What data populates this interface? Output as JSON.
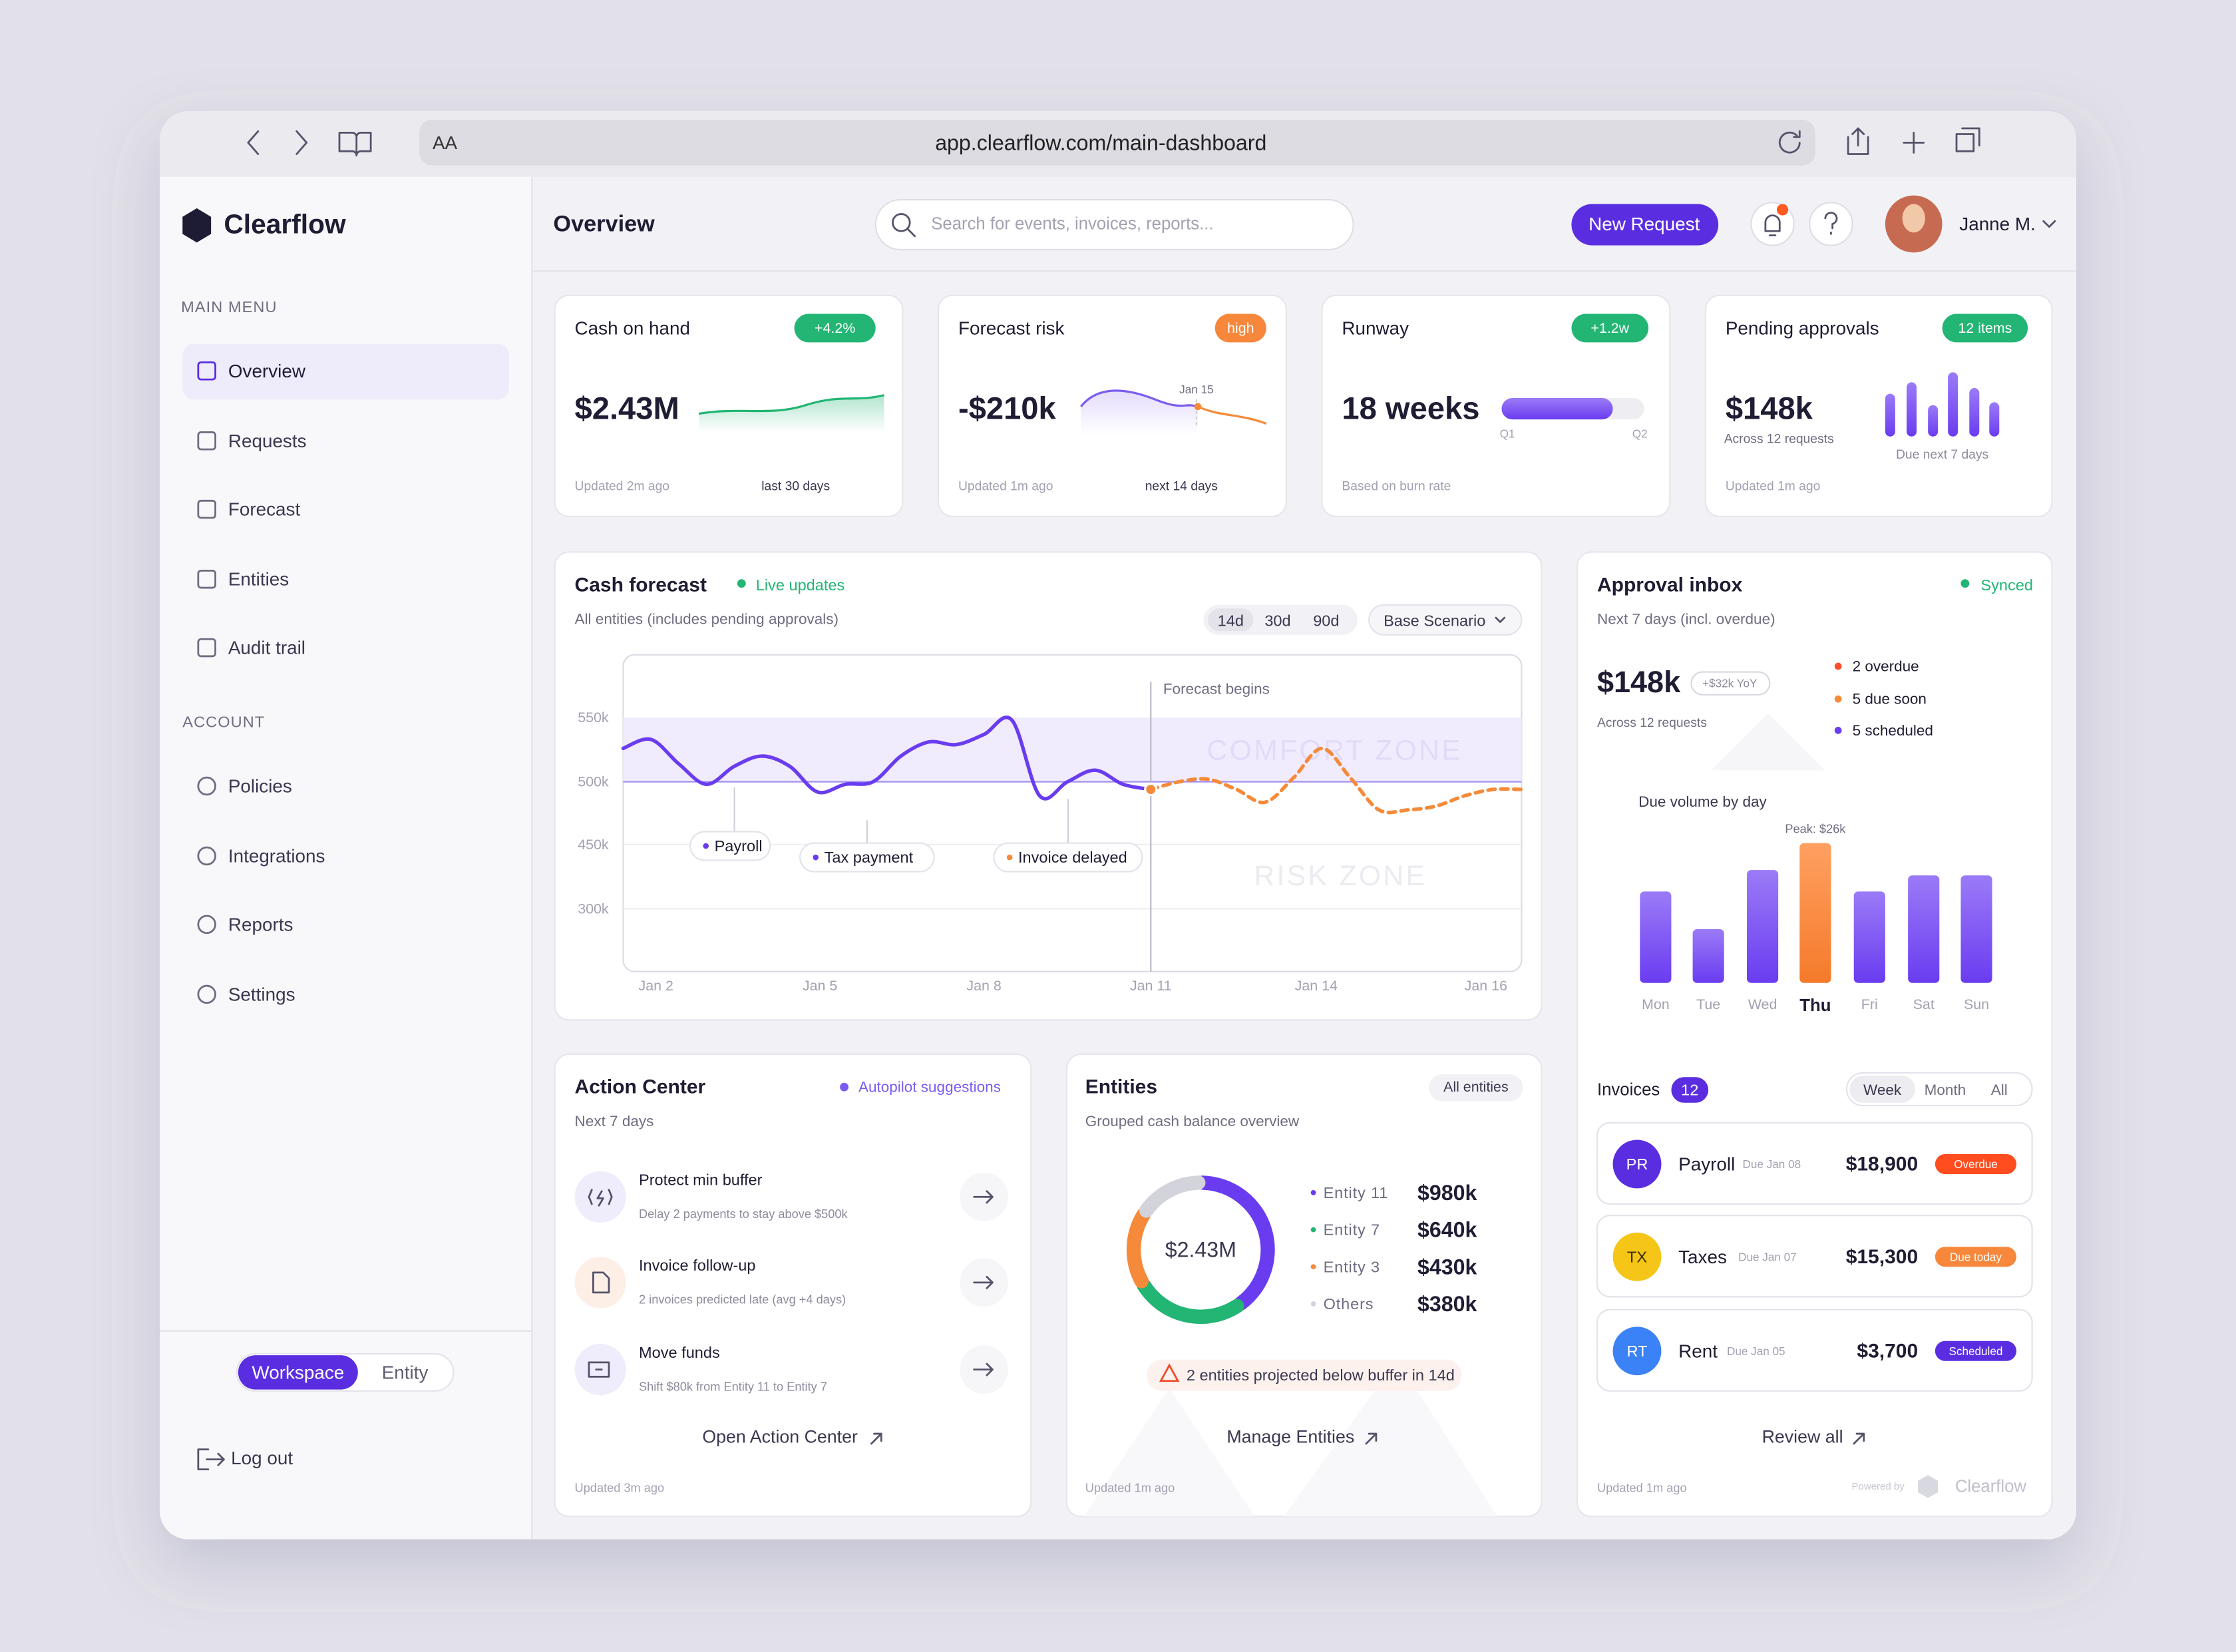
{
  "browser": {
    "text_size": "AA",
    "url": "app.clearflow.com/main-dashboard"
  },
  "sidebar": {
    "brand": "Clearflow",
    "main_menu_label": "MAIN MENU",
    "main_menu": [
      "Overview",
      "Requests",
      "Forecast",
      "Entities",
      "Audit trail"
    ],
    "account_label": "ACCOUNT",
    "account": [
      "Policies",
      "Integrations",
      "Reports",
      "Settings"
    ],
    "mode_toggle": [
      "Workspace",
      "Entity"
    ],
    "logout": "Log out"
  },
  "header": {
    "title": "Overview",
    "search_placeholder": "Search for events, invoices, reports...",
    "new_request": "New Request",
    "user": "Janne M."
  },
  "kpis": [
    {
      "title": "Cash on hand",
      "badge": "+4.2%",
      "value": "$2.43M",
      "updated": "Updated 2m ago",
      "period": "last 30 days"
    },
    {
      "title": "Forecast risk",
      "badge": "high",
      "value": "-$210k",
      "marker": "Jan 15",
      "updated": "Updated 1m ago",
      "period": "next 14 days"
    },
    {
      "title": "Runway",
      "badge": "+1.2w",
      "value": "18 weeks",
      "scale": [
        "Q1",
        "Q2"
      ],
      "updated": "Based on burn rate"
    },
    {
      "title": "Pending approvals",
      "badge": "12 items",
      "value": "$148k",
      "detail": "Across 12 requests",
      "period": "Due next 7 days",
      "updated": "Updated 1m ago"
    }
  ],
  "cash_forecast": {
    "title": "Cash forecast",
    "status": "Live updates",
    "subtitle": "All entities (includes pending approvals)",
    "ranges": [
      "14d",
      "30d",
      "90d"
    ],
    "scenario": "Base Scenario",
    "y_labels": [
      "550k",
      "500k",
      "450k",
      "300k"
    ],
    "x_labels": [
      "Jan 2",
      "Jan 5",
      "Jan 8",
      "Jan 11",
      "Jan 14",
      "Jan 16"
    ],
    "forecast_marker": "Forecast begins",
    "zones": [
      "COMFORT ZONE",
      "RISK ZONE"
    ],
    "events": [
      "Payroll",
      "Tax payment",
      "Invoice delayed"
    ],
    "ylim": [
      352,
      599
    ],
    "actual": [
      526,
      533,
      514,
      498,
      512,
      520,
      512,
      492,
      498,
      500,
      520,
      531,
      529,
      537,
      548,
      489,
      500,
      509,
      498,
      494
    ],
    "forecast": [
      494,
      500,
      502,
      494,
      484,
      503,
      526,
      503,
      478,
      478,
      481,
      489,
      494,
      494
    ]
  },
  "approval_inbox": {
    "title": "Approval inbox",
    "status": "Synced",
    "subtitle": "Next 7 days (incl. overdue)",
    "total": "$148k",
    "change": "+$32k YoY",
    "detail": "Across 12 requests",
    "breakdown": [
      "2 overdue",
      "5 due soon",
      "5 scheduled"
    ],
    "chart_title": "Due volume by day",
    "peak_label": "Peak: $26k",
    "days": [
      "Mon",
      "Tue",
      "Wed",
      "Thu",
      "Fri",
      "Sat",
      "Sun"
    ],
    "due_volume": [
      17,
      10,
      21,
      26,
      17,
      20,
      20
    ],
    "ylim": [
      0,
      26
    ],
    "invoices_label": "Invoices",
    "invoice_count": 12,
    "filters": [
      "Week",
      "Month",
      "All"
    ],
    "invoices": [
      {
        "initials": "PR",
        "name": "Payroll",
        "due": "Due Jan 08",
        "amount": "$18,900",
        "status": "Overdue"
      },
      {
        "initials": "TX",
        "name": "Taxes",
        "due": "Due Jan 07",
        "amount": "$15,300",
        "status": "Due today"
      },
      {
        "initials": "RT",
        "name": "Rent",
        "due": "Due Jan 05",
        "amount": "$3,700",
        "status": "Scheduled"
      }
    ],
    "review": "Review all",
    "updated": "Updated 1m ago",
    "powered_by": "Powered by",
    "brand": "Clearflow"
  },
  "action_center": {
    "title": "Action Center",
    "status": "Autopilot suggestions",
    "subtitle": "Next 7 days",
    "actions": [
      {
        "title": "Protect min buffer",
        "detail": "Delay 2 payments to stay above $500k"
      },
      {
        "title": "Invoice follow-up",
        "detail": "2 invoices predicted late (avg +4 days)"
      },
      {
        "title": "Move funds",
        "detail": "Shift $80k from Entity 11 to Entity 7"
      }
    ],
    "link": "Open Action Center",
    "updated": "Updated 3m ago"
  },
  "entities": {
    "title": "Entities",
    "filter": "All entities",
    "subtitle": "Grouped cash balance overview",
    "total": "$2.43M",
    "names": [
      "Entity 11",
      "Entity 7",
      "Entity 3",
      "Others"
    ],
    "values": [
      980,
      640,
      430,
      380
    ],
    "value_labels": [
      "$980k",
      "$640k",
      "$430k",
      "$380k"
    ],
    "colors": [
      "#6a3cf0",
      "#22b573",
      "#f58a3a",
      "#d3d3dc"
    ],
    "warning": "2 entities projected below buffer in 14d",
    "link": "Manage Entities",
    "updated": "Updated 1m ago"
  }
}
